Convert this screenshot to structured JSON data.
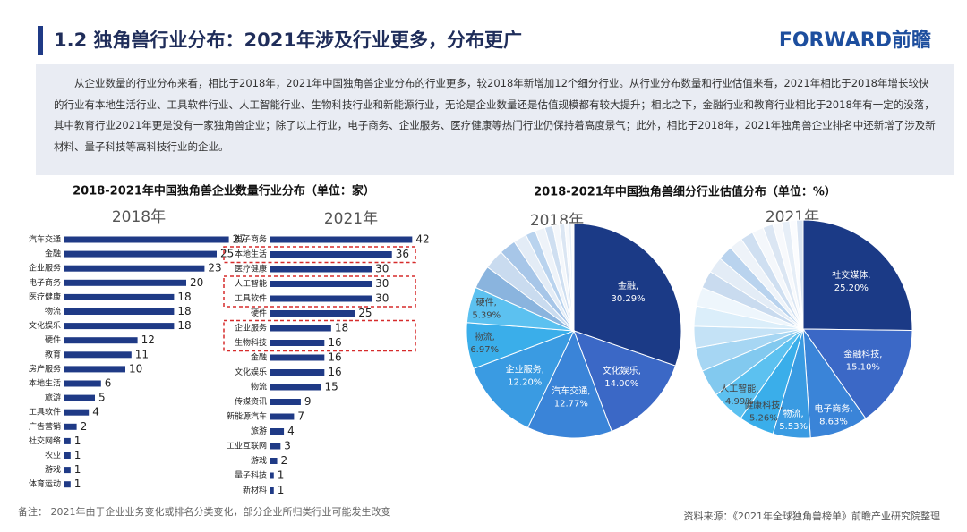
{
  "header": {
    "title": "1.2 独角兽行业分布：2021年涉及行业更多，分布更广",
    "logo": "FORWARD前瞻"
  },
  "summary": "从企业数量的行业分布来看，相比于2018年，2021年中国独角兽企业分布的行业更多，较2018年新增加12个细分行业。从行业分布数量和行业估值来看，2021年相比于2018年增长较快的行业有本地生活行业、工具软件行业、人工智能行业、生物科技行业和新能源行业，无论是企业数量还是估值规模都有较大提升；相比之下，金融行业和教育行业相比于2018年有一定的没落，其中教育行业2021年更是没有一家独角兽企业；除了以上行业，电子商务、企业服务、医疗健康等热门行业仍保持着高度景气；此外，相比于2018年，2021年独角兽企业排名中还新增了涉及新材料、量子科技等高科技行业的企业。",
  "left_title": "2018-2021年中国独角兽企业数量行业分布（单位：家）",
  "right_title": "2018-2021年中国独角兽细分行业估值分布（单位：%）",
  "note": "备注： 2021年由于企业业务变化或排名分类变化，部分企业所归类行业可能发生改变",
  "source": "资料来源：《2021年全球独角兽榜单》前瞻产业研究院整理",
  "chart_data": [
    {
      "type": "bar",
      "horizontal": true,
      "title": "2018年",
      "color": "#1f3a86",
      "categories": [
        "汽车交通",
        "金融",
        "企业服务",
        "电子商务",
        "医疗健康",
        "物流",
        "文化娱乐",
        "硬件",
        "教育",
        "房产服务",
        "本地生活",
        "旅游",
        "工具软件",
        "广告营销",
        "社交网络",
        "农业",
        "游戏",
        "体育运动"
      ],
      "values": [
        27,
        25,
        23,
        20,
        18,
        18,
        18,
        12,
        11,
        10,
        6,
        5,
        4,
        2,
        1,
        1,
        1,
        1
      ]
    },
    {
      "type": "bar",
      "horizontal": true,
      "title": "2021年",
      "color": "#1f3a86",
      "categories": [
        "电子商务",
        "本地生活",
        "医疗健康",
        "人工智能",
        "工具软件",
        "硬件",
        "企业服务",
        "生物科技",
        "金融",
        "文化娱乐",
        "物流",
        "传媒资讯",
        "新能源汽车",
        "旅游",
        "工业互联网",
        "游戏",
        "量子科技",
        "新材料"
      ],
      "values": [
        42,
        36,
        30,
        30,
        30,
        25,
        18,
        16,
        16,
        16,
        15,
        9,
        7,
        4,
        3,
        2,
        1,
        1
      ]
    },
    {
      "type": "pie",
      "title": "2018年",
      "categories": [
        "金融,",
        "文化娱乐,",
        "汽车交通,",
        "企业服务,",
        "物流,",
        "硬件,",
        null,
        null,
        null,
        null,
        null,
        null,
        null,
        null,
        null,
        null,
        null,
        null
      ],
      "values": [
        30.29,
        14.0,
        12.77,
        12.2,
        6.97,
        5.39,
        3.5,
        3,
        2.5,
        2,
        1.5,
        1.5,
        1.2,
        1,
        0.8,
        0.6,
        0.4,
        0.38
      ],
      "value_labels": [
        "30.29%",
        "14.00%",
        "12.77%",
        "12.20%",
        "6.97%",
        "5.39%",
        null,
        null,
        null,
        null,
        null,
        null,
        null,
        null,
        null,
        null,
        null,
        null
      ],
      "colors": [
        "#1b3a86",
        "#3b68c6",
        "#3a84d8",
        "#3a9be2",
        "#3aaeea",
        "#5cc1f0",
        "#8ab4de",
        "#c9dbef",
        "#a7c6e8",
        "#e3ecf6",
        "#b9d3ee",
        "#eef3f9",
        "#cfdff1",
        "#f4f7fb",
        "#dbe6f3",
        "#f7f9fc",
        "#e6eef7",
        "#fbfcfe"
      ]
    },
    {
      "type": "pie",
      "title": "2021年",
      "categories": [
        "社交媒体,",
        "金融科技,",
        "电子商务,",
        "物流,",
        "健康科技,",
        "人工智能,",
        null,
        null,
        null,
        null,
        null,
        null,
        null,
        null,
        null,
        null,
        null,
        null,
        null,
        null,
        null,
        null
      ],
      "values": [
        25.2,
        15.1,
        8.63,
        5.53,
        5.26,
        4.99,
        4,
        3.5,
        3.2,
        3,
        2.8,
        2.6,
        2.4,
        2.2,
        2,
        1.9,
        1.7,
        1.5,
        1.3,
        1.2,
        1,
        0.99
      ],
      "value_labels": [
        "25.20%",
        "15.10%",
        "8.63%",
        "5.53%",
        "5.26%",
        "4.99%",
        null,
        null,
        null,
        null,
        null,
        null,
        null,
        null,
        null,
        null,
        null,
        null,
        null,
        null,
        null,
        null
      ],
      "colors": [
        "#1b3a86",
        "#3b68c6",
        "#3a84d8",
        "#3a9be2",
        "#3aaeea",
        "#5cc1f0",
        "#82c9ef",
        "#a6d6f3",
        "#c4e2f6",
        "#dbeefa",
        "#eef6fc",
        "#c9dbef",
        "#e3ecf6",
        "#b9d3ee",
        "#eef3f9",
        "#cfdff1",
        "#f4f7fb",
        "#dbe6f3",
        "#f7f9fc",
        "#e6eef7",
        "#fbfcfe",
        "#d9e4f2"
      ]
    }
  ]
}
